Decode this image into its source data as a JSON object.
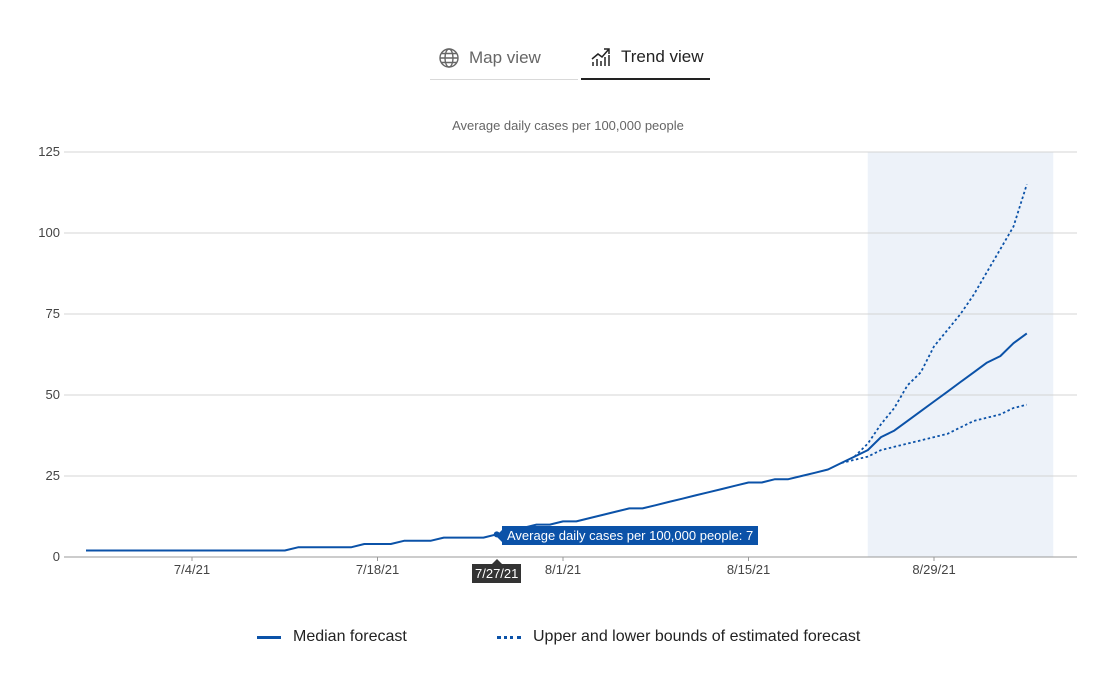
{
  "tabs": [
    {
      "label": "Map view",
      "icon": "globe-icon",
      "selected": false
    },
    {
      "label": "Trend view",
      "icon": "trend-chart-icon",
      "selected": true
    }
  ],
  "tooltip": {
    "value_text": "Average daily cases per 100,000 people: 7",
    "date_text": "7/27/21"
  },
  "legend": {
    "median_label": "Median forecast",
    "bounds_label": "Upper and lower bounds of estimated forecast"
  },
  "colors": {
    "line": "#0b52a8",
    "forecast_shade": "#edf2f9",
    "grid": "#d4d4d4",
    "tooltip_bg": "#0b52a8",
    "date_tip_bg": "#333333"
  },
  "chart_data": {
    "type": "line",
    "title": "Average daily cases per 100,000 people",
    "xlabel": "",
    "ylabel": "",
    "ylim": [
      0,
      125
    ],
    "yticks": [
      0,
      25,
      50,
      75,
      100,
      125
    ],
    "x_ticks": [
      "7/4/21",
      "7/18/21",
      "8/1/21",
      "8/15/21",
      "8/29/21"
    ],
    "grid": true,
    "legend_position": "bottom",
    "forecast_shaded_range": [
      "2021-08-24",
      "2021-09-07"
    ],
    "series": [
      {
        "name": "Median forecast",
        "style": "solid",
        "points": [
          [
            "2021-06-26",
            2
          ],
          [
            "2021-06-27",
            2
          ],
          [
            "2021-06-28",
            2
          ],
          [
            "2021-06-29",
            2
          ],
          [
            "2021-06-30",
            2
          ],
          [
            "2021-07-01",
            2
          ],
          [
            "2021-07-02",
            2
          ],
          [
            "2021-07-03",
            2
          ],
          [
            "2021-07-04",
            2
          ],
          [
            "2021-07-05",
            2
          ],
          [
            "2021-07-06",
            2
          ],
          [
            "2021-07-07",
            2
          ],
          [
            "2021-07-08",
            2
          ],
          [
            "2021-07-09",
            2
          ],
          [
            "2021-07-10",
            2
          ],
          [
            "2021-07-11",
            2
          ],
          [
            "2021-07-12",
            3
          ],
          [
            "2021-07-13",
            3
          ],
          [
            "2021-07-14",
            3
          ],
          [
            "2021-07-15",
            3
          ],
          [
            "2021-07-16",
            3
          ],
          [
            "2021-07-17",
            4
          ],
          [
            "2021-07-18",
            4
          ],
          [
            "2021-07-19",
            4
          ],
          [
            "2021-07-20",
            5
          ],
          [
            "2021-07-21",
            5
          ],
          [
            "2021-07-22",
            5
          ],
          [
            "2021-07-23",
            6
          ],
          [
            "2021-07-24",
            6
          ],
          [
            "2021-07-25",
            6
          ],
          [
            "2021-07-26",
            6
          ],
          [
            "2021-07-27",
            7
          ],
          [
            "2021-07-28",
            8
          ],
          [
            "2021-07-29",
            9
          ],
          [
            "2021-07-30",
            10
          ],
          [
            "2021-07-31",
            10
          ],
          [
            "2021-08-01",
            11
          ],
          [
            "2021-08-02",
            11
          ],
          [
            "2021-08-03",
            12
          ],
          [
            "2021-08-04",
            13
          ],
          [
            "2021-08-05",
            14
          ],
          [
            "2021-08-06",
            15
          ],
          [
            "2021-08-07",
            15
          ],
          [
            "2021-08-08",
            16
          ],
          [
            "2021-08-09",
            17
          ],
          [
            "2021-08-10",
            18
          ],
          [
            "2021-08-11",
            19
          ],
          [
            "2021-08-12",
            20
          ],
          [
            "2021-08-13",
            21
          ],
          [
            "2021-08-14",
            22
          ],
          [
            "2021-08-15",
            23
          ],
          [
            "2021-08-16",
            23
          ],
          [
            "2021-08-17",
            24
          ],
          [
            "2021-08-18",
            24
          ],
          [
            "2021-08-19",
            25
          ],
          [
            "2021-08-20",
            26
          ],
          [
            "2021-08-21",
            27
          ],
          [
            "2021-08-22",
            29
          ],
          [
            "2021-08-23",
            31
          ],
          [
            "2021-08-24",
            33
          ],
          [
            "2021-08-25",
            37
          ],
          [
            "2021-08-26",
            39
          ],
          [
            "2021-08-27",
            42
          ],
          [
            "2021-08-28",
            45
          ],
          [
            "2021-08-29",
            48
          ],
          [
            "2021-08-30",
            51
          ],
          [
            "2021-08-31",
            54
          ],
          [
            "2021-09-01",
            57
          ],
          [
            "2021-09-02",
            60
          ],
          [
            "2021-09-03",
            62
          ],
          [
            "2021-09-04",
            66
          ],
          [
            "2021-09-05",
            69
          ]
        ]
      },
      {
        "name": "Upper and lower bounds of estimated forecast",
        "style": "dotted",
        "bound": "upper",
        "points": [
          [
            "2021-08-23",
            31
          ],
          [
            "2021-08-24",
            35
          ],
          [
            "2021-08-25",
            41
          ],
          [
            "2021-08-26",
            46
          ],
          [
            "2021-08-27",
            53
          ],
          [
            "2021-08-28",
            57
          ],
          [
            "2021-08-29",
            65
          ],
          [
            "2021-08-30",
            70
          ],
          [
            "2021-08-31",
            75
          ],
          [
            "2021-09-01",
            81
          ],
          [
            "2021-09-02",
            88
          ],
          [
            "2021-09-03",
            95
          ],
          [
            "2021-09-04",
            102
          ],
          [
            "2021-09-05",
            115
          ]
        ]
      },
      {
        "name": "Upper and lower bounds of estimated forecast",
        "style": "dotted",
        "bound": "lower",
        "points": [
          [
            "2021-08-22",
            29
          ],
          [
            "2021-08-23",
            30
          ],
          [
            "2021-08-24",
            31
          ],
          [
            "2021-08-25",
            33
          ],
          [
            "2021-08-26",
            34
          ],
          [
            "2021-08-27",
            35
          ],
          [
            "2021-08-28",
            36
          ],
          [
            "2021-08-29",
            37
          ],
          [
            "2021-08-30",
            38
          ],
          [
            "2021-08-31",
            40
          ],
          [
            "2021-09-01",
            42
          ],
          [
            "2021-09-02",
            43
          ],
          [
            "2021-09-03",
            44
          ],
          [
            "2021-09-04",
            46
          ],
          [
            "2021-09-05",
            47
          ]
        ]
      }
    ],
    "highlight": {
      "date": "2021-07-27",
      "value": 7
    }
  }
}
